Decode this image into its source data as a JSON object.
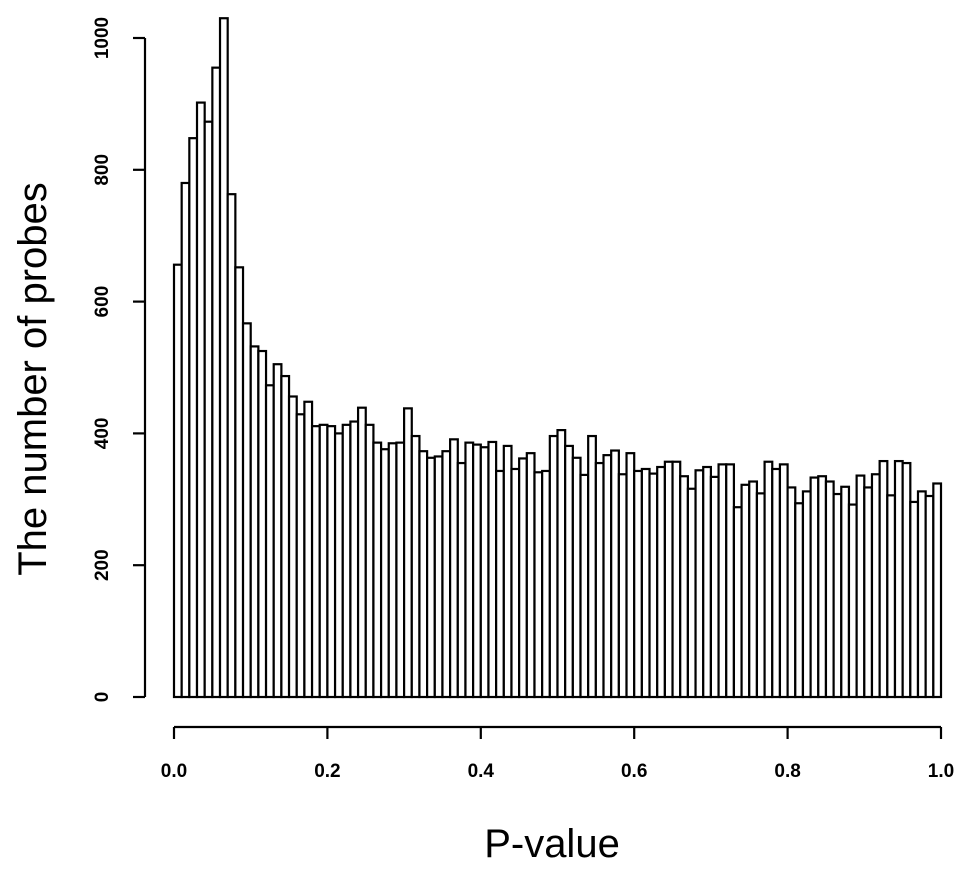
{
  "chart_data": {
    "type": "bar",
    "title": "",
    "xlabel": "P-value",
    "ylabel": "The number of probes",
    "xlim": [
      0,
      1
    ],
    "ylim": [
      0,
      1030
    ],
    "x_ticks": [
      "0.0",
      "0.2",
      "0.4",
      "0.6",
      "0.8",
      "1.0"
    ],
    "x_tick_values": [
      0,
      0.2,
      0.4,
      0.6,
      0.8,
      1.0
    ],
    "y_ticks": [
      "0",
      "200",
      "400",
      "600",
      "800",
      "1000"
    ],
    "y_tick_values": [
      0,
      200,
      400,
      600,
      800,
      1000
    ],
    "bin_width": 0.01,
    "bin_starts": [
      0,
      0.01,
      0.02,
      0.03,
      0.04,
      0.05,
      0.06,
      0.07,
      0.08,
      0.09,
      0.1,
      0.11,
      0.12,
      0.13,
      0.14,
      0.15,
      0.16,
      0.17,
      0.18,
      0.19,
      0.2,
      0.21,
      0.22,
      0.23,
      0.24,
      0.25,
      0.26,
      0.27,
      0.28,
      0.29,
      0.3,
      0.31,
      0.32,
      0.33,
      0.34,
      0.35,
      0.36,
      0.37,
      0.38,
      0.39,
      0.4,
      0.41,
      0.42,
      0.43,
      0.44,
      0.45,
      0.46,
      0.47,
      0.48,
      0.49,
      0.5,
      0.51,
      0.52,
      0.53,
      0.54,
      0.55,
      0.56,
      0.57,
      0.58,
      0.59,
      0.6,
      0.61,
      0.62,
      0.63,
      0.64,
      0.65,
      0.66,
      0.67,
      0.68,
      0.69,
      0.7,
      0.71,
      0.72,
      0.73,
      0.74,
      0.75,
      0.76,
      0.77,
      0.78,
      0.79,
      0.8,
      0.81,
      0.82,
      0.83,
      0.84,
      0.85,
      0.86,
      0.87,
      0.88,
      0.89,
      0.9,
      0.91,
      0.92,
      0.93,
      0.94,
      0.95,
      0.96,
      0.97,
      0.98,
      0.99
    ],
    "values": [
      656,
      780,
      848,
      902,
      873,
      955,
      1030,
      763,
      652,
      567,
      532,
      525,
      473,
      505,
      487,
      456,
      429,
      448,
      411,
      413,
      411,
      400,
      413,
      418,
      439,
      413,
      386,
      376,
      385,
      386,
      438,
      396,
      373,
      363,
      365,
      373,
      391,
      355,
      386,
      383,
      379,
      387,
      343,
      381,
      346,
      362,
      370,
      341,
      343,
      396,
      405,
      381,
      363,
      337,
      396,
      355,
      367,
      374,
      338,
      370,
      343,
      346,
      339,
      349,
      357,
      357,
      335,
      316,
      344,
      349,
      334,
      353,
      353,
      288,
      322,
      327,
      309,
      357,
      346,
      353,
      318,
      294,
      312,
      333,
      335,
      327,
      308,
      319,
      292,
      336,
      318,
      338,
      358,
      306,
      358,
      355,
      296,
      312,
      305,
      324
    ]
  }
}
